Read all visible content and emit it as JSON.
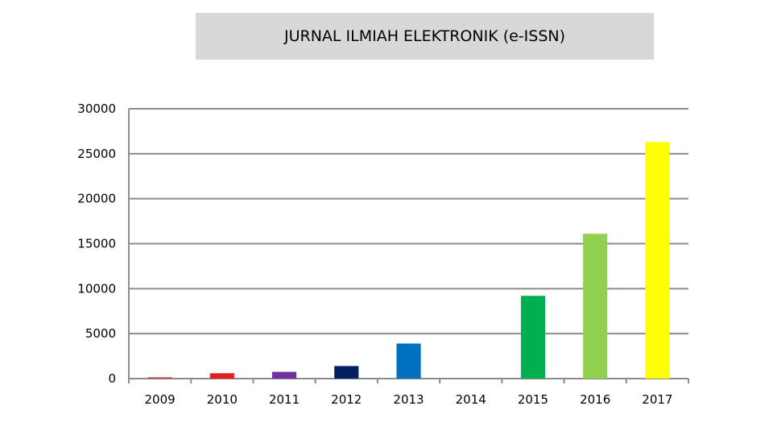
{
  "page": {
    "title": "JURNAL ILMIAH ELEKTRONIK (e-ISSN)"
  },
  "chart_data": {
    "type": "bar",
    "title": "JURNAL ILMIAH ELEKTRONIK (e-ISSN)",
    "xlabel": "",
    "ylabel": "",
    "categories": [
      "2009",
      "2010",
      "2011",
      "2012",
      "2013",
      "2014",
      "2015",
      "2016",
      "2017"
    ],
    "values": [
      150,
      600,
      750,
      1400,
      3900,
      0,
      9200,
      16100,
      26300
    ],
    "colors": [
      "#c0504d",
      "#e41e1e",
      "#7030a0",
      "#002060",
      "#0070c0",
      "#00b050",
      "#00b050",
      "#92d050",
      "#ffff00"
    ],
    "ylim": [
      0,
      30000
    ],
    "yticks": [
      0,
      5000,
      10000,
      15000,
      20000,
      25000,
      30000
    ],
    "grid": true,
    "legend": "none"
  }
}
